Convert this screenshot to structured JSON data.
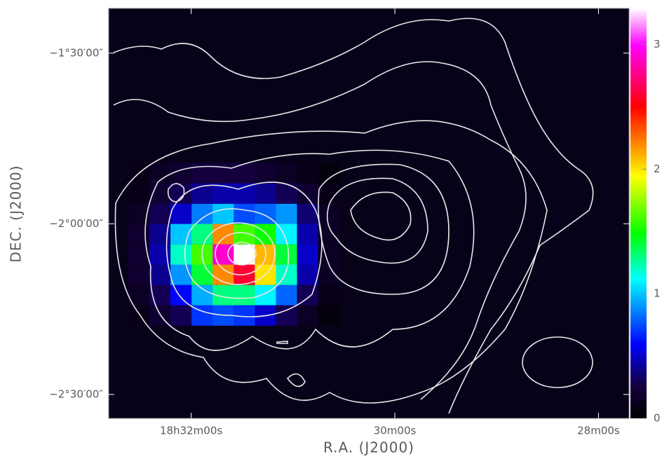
{
  "chart_data": {
    "type": "heatmap",
    "xlabel": "R.A. (J2000)",
    "ylabel": "DEC. (J2000)",
    "xlim": [
      32.81,
      27.7
    ],
    "ylim": [
      -2.57,
      -1.369
    ],
    "xticks": [
      {
        "value": 32,
        "label": "18h32m00s"
      },
      {
        "value": 30,
        "label": "30m00s"
      },
      {
        "value": 28,
        "label": "28m00s"
      }
    ],
    "yticks": [
      {
        "value": -1.5,
        "label": "−1°30′00″"
      },
      {
        "value": -2.0,
        "label": "−2°00′00″"
      },
      {
        "value": -2.5,
        "label": "−2°30′00″"
      }
    ],
    "x": [
      32.513,
      32.307,
      32.1,
      31.893,
      31.686,
      31.479,
      31.272,
      31.065,
      30.858,
      30.651
    ],
    "y": [
      -1.852,
      -1.911,
      -1.971,
      -2.03,
      -2.09,
      -2.149,
      -2.209,
      -2.268
    ],
    "values": [
      [
        0.1,
        0.15,
        0.2,
        0.25,
        0.25,
        0.25,
        0.2,
        0.15,
        0.1,
        0.05
      ],
      [
        0.1,
        0.2,
        0.3,
        0.4,
        0.45,
        0.45,
        0.4,
        0.3,
        0.2,
        0.1
      ],
      [
        0.15,
        0.3,
        0.5,
        0.85,
        1.0,
        0.75,
        0.8,
        0.9,
        0.35,
        0.15
      ],
      [
        0.2,
        0.4,
        1.0,
        1.3,
        2.2,
        1.6,
        1.5,
        1.1,
        0.45,
        0.15
      ],
      [
        0.2,
        0.45,
        1.2,
        1.6,
        2.9,
        3.3,
        2.1,
        1.4,
        0.5,
        0.15
      ],
      [
        0.2,
        0.4,
        0.9,
        1.4,
        2.2,
        2.6,
        2.0,
        1.2,
        0.45,
        0.15
      ],
      [
        0.15,
        0.3,
        0.6,
        0.95,
        1.3,
        1.3,
        1.1,
        0.8,
        0.3,
        0.1
      ],
      [
        0.1,
        0.2,
        0.3,
        0.7,
        0.75,
        0.7,
        0.5,
        0.3,
        0.15,
        0.05
      ]
    ],
    "clim": [
      0,
      3.29
    ],
    "cticks": [
      0,
      1,
      2,
      3
    ]
  }
}
